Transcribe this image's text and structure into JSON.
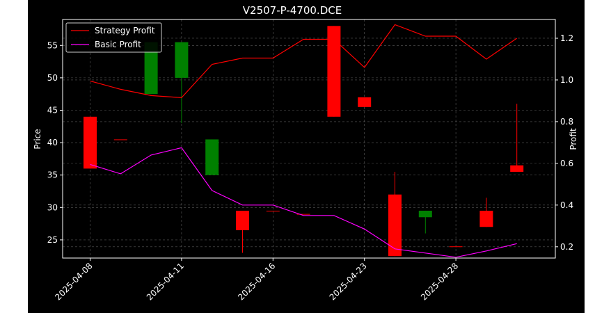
{
  "chart_data": {
    "type": "candlestick",
    "title": "V2507-P-4700.DCE",
    "ylabel": "Price",
    "y2label": "Profit",
    "ylim": [
      22.2,
      59.0
    ],
    "y2lim": [
      0.146,
      1.29
    ],
    "yticks": [
      25,
      30,
      35,
      40,
      45,
      50,
      55
    ],
    "y2ticks": [
      0.2,
      0.4,
      0.6,
      0.8,
      1.0,
      1.2
    ],
    "xticks": [
      {
        "label": "2025-04-08",
        "index": 0
      },
      {
        "label": "2025-04-11",
        "index": 3
      },
      {
        "label": "2025-04-16",
        "index": 6
      },
      {
        "label": "2025-04-23",
        "index": 9
      },
      {
        "label": "2025-04-28",
        "index": 12
      }
    ],
    "grid": true,
    "legend_position": "top-left",
    "colors": {
      "background": "#000000",
      "up": "#008000",
      "down": "#ff0000",
      "strategy": "#ff0000",
      "basic": "#ff00ff",
      "grid": "#808080"
    },
    "candles": [
      {
        "i": 0,
        "open": 44.0,
        "close": 36.0,
        "high": 44.0,
        "low": 36.0
      },
      {
        "i": 1,
        "open": 40.5,
        "close": 40.5,
        "high": 40.5,
        "low": 40.5
      },
      {
        "i": 2,
        "open": 47.5,
        "close": 55.5,
        "high": 55.5,
        "low": 47.5
      },
      {
        "i": 3,
        "open": 50.0,
        "close": 55.5,
        "high": 55.5,
        "low": 43.0
      },
      {
        "i": 4,
        "open": 35.0,
        "close": 40.5,
        "high": 40.5,
        "low": 35.0
      },
      {
        "i": 5,
        "open": 29.5,
        "close": 26.5,
        "high": 29.5,
        "low": 23.0
      },
      {
        "i": 6,
        "open": 29.5,
        "close": 29.5,
        "high": 29.5,
        "low": 29.5
      },
      {
        "i": 7,
        "open": 29.0,
        "close": 29.0,
        "high": 29.0,
        "low": 29.0
      },
      {
        "i": 8,
        "open": 58.0,
        "close": 44.0,
        "high": 58.0,
        "low": 44.0
      },
      {
        "i": 9,
        "open": 47.0,
        "close": 45.5,
        "high": 47.0,
        "low": 45.5
      },
      {
        "i": 10,
        "open": 32.0,
        "close": 22.5,
        "high": 35.5,
        "low": 22.5
      },
      {
        "i": 11,
        "open": 28.5,
        "close": 29.5,
        "high": 29.5,
        "low": 26.0
      },
      {
        "i": 12,
        "open": 24.0,
        "close": 24.0,
        "high": 24.0,
        "low": 24.0
      },
      {
        "i": 13,
        "open": 29.5,
        "close": 27.0,
        "high": 31.5,
        "low": 27.0
      },
      {
        "i": 14,
        "open": 36.5,
        "close": 35.5,
        "high": 46.0,
        "low": 35.5
      }
    ],
    "series": [
      {
        "name": "Strategy Profit",
        "color": "#ff0000",
        "values": [
          0.995,
          0.955,
          0.925,
          0.915,
          1.075,
          1.105,
          1.105,
          1.195,
          1.195,
          1.06,
          1.265,
          1.21,
          1.21,
          1.1,
          1.2
        ]
      },
      {
        "name": "Basic Profit",
        "color": "#ff00ff",
        "values": [
          0.595,
          0.55,
          0.64,
          0.675,
          0.47,
          0.4,
          0.4,
          0.35,
          0.35,
          0.285,
          0.19,
          0.17,
          0.15,
          0.18,
          0.215
        ]
      }
    ]
  }
}
